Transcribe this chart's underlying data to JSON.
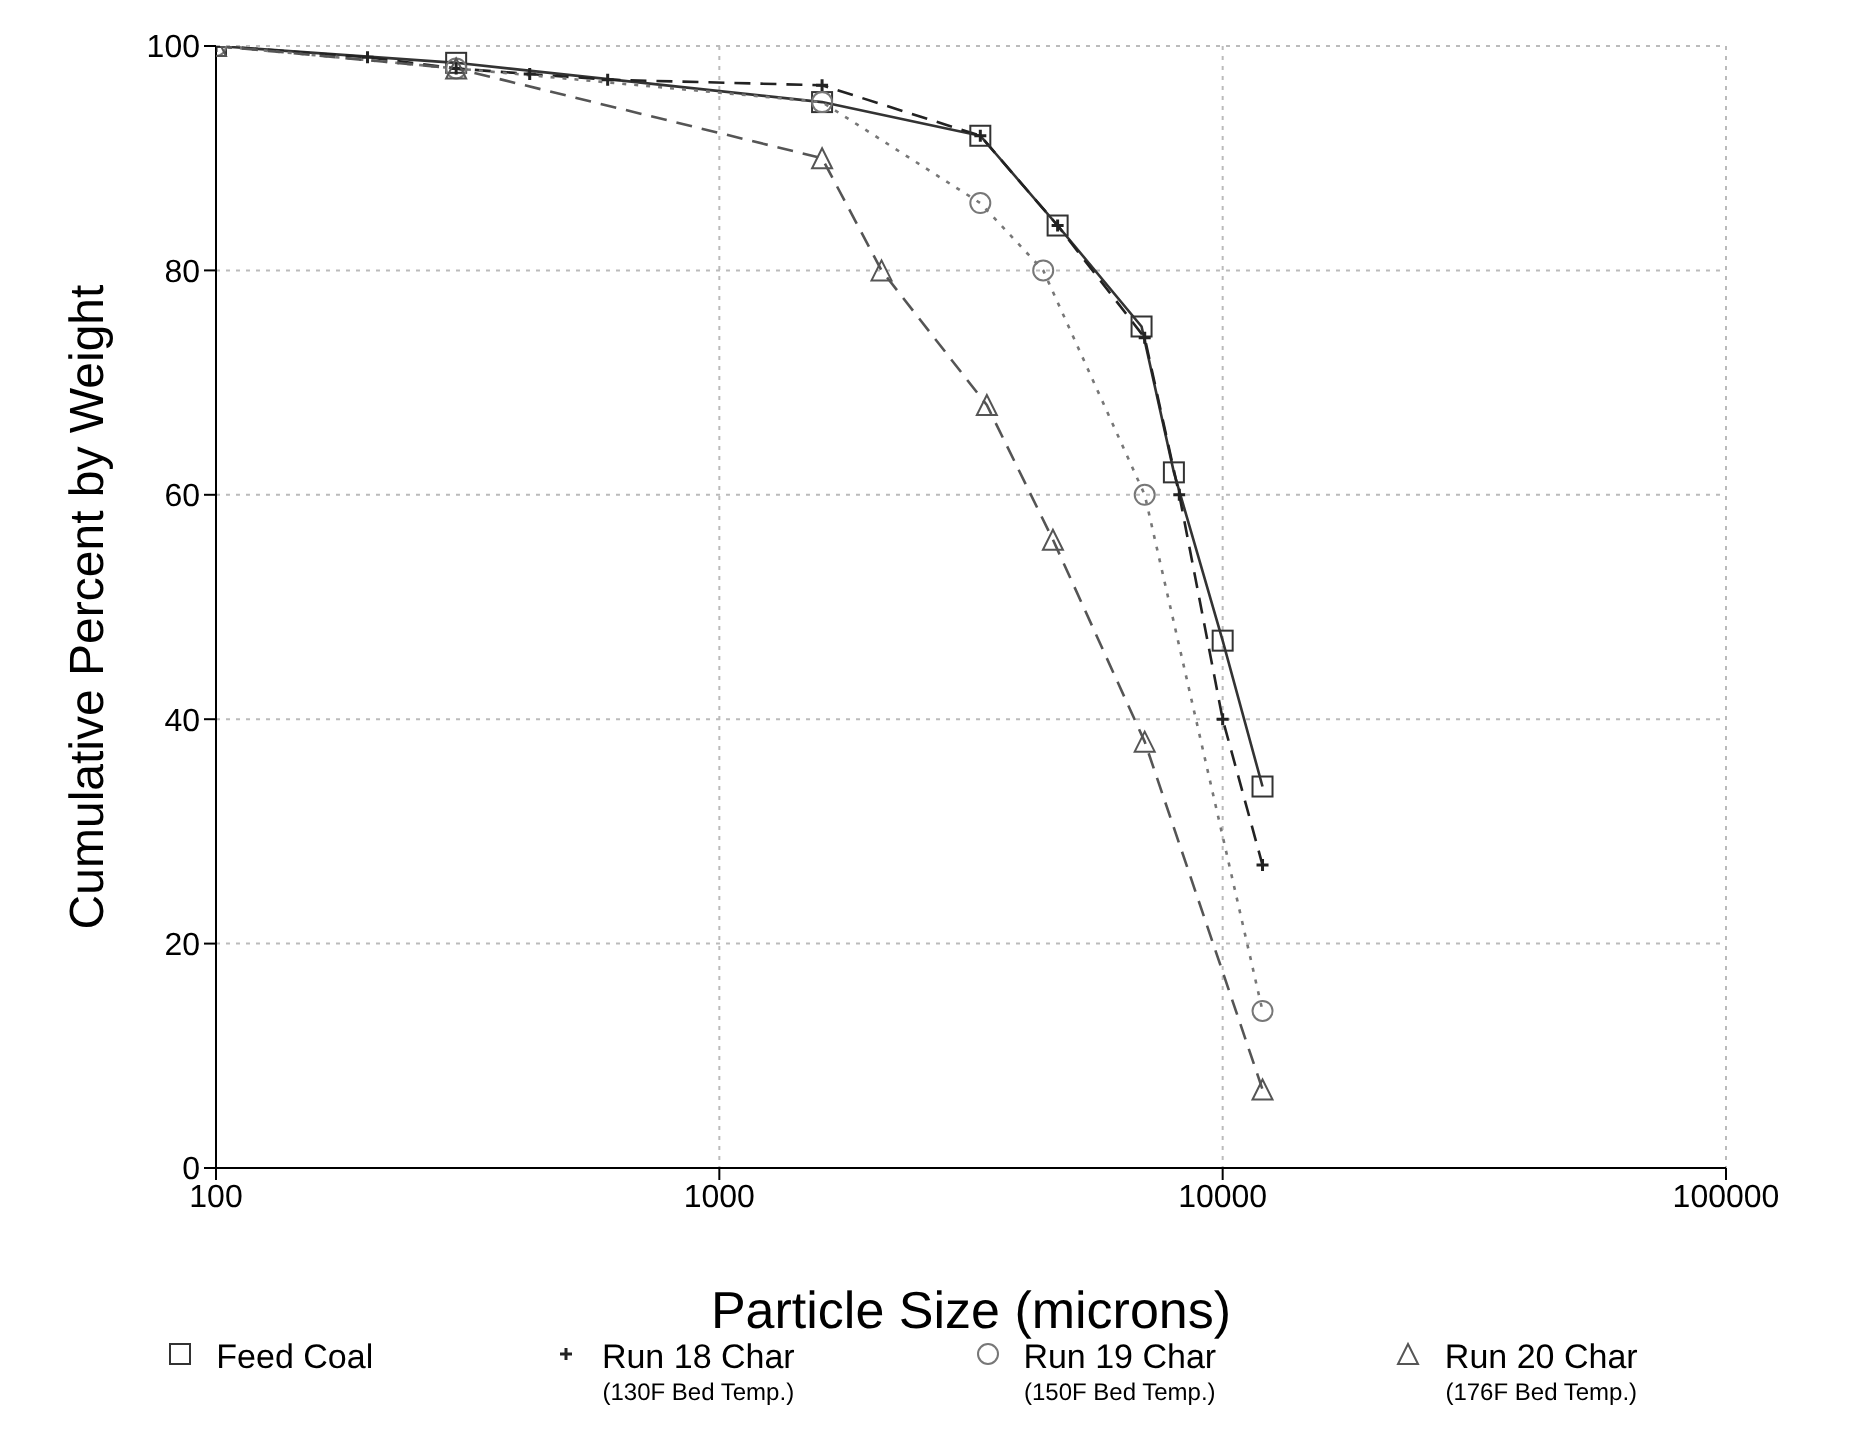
{
  "chart_data": {
    "type": "line",
    "xlabel": "Particle Size (microns)",
    "ylabel": "Cumulative Percent by Weight",
    "log": "x",
    "xlim": [
      100,
      100000
    ],
    "xticks": [
      100,
      1000,
      10000,
      100000
    ],
    "ylim": [
      0,
      100
    ],
    "yticks": [
      0,
      20,
      40,
      60,
      80,
      100
    ],
    "grid": true,
    "legend": "bottom",
    "series": [
      {
        "name": "Feed Coal",
        "color": "#333333",
        "marker": "square",
        "line_style": "solid",
        "x": [
          100,
          300,
          1600,
          3300,
          4700,
          6900,
          8000,
          10000,
          12000
        ],
        "values": [
          100,
          98.5,
          95,
          92,
          84,
          75,
          62,
          47,
          34
        ]
      },
      {
        "name": "Run 18 Char (130F Bed Temp.)",
        "color": "#222222",
        "marker": "cross",
        "line_style": "dashed",
        "x": [
          100,
          200,
          300,
          420,
          600,
          1600,
          3300,
          4700,
          7000,
          8200,
          10000,
          12000
        ],
        "values": [
          100,
          99,
          98,
          97.5,
          97,
          96.5,
          92,
          84,
          74,
          60,
          40,
          27
        ]
      },
      {
        "name": "Run 19 Char (150F Bed Temp.)",
        "color": "#777777",
        "marker": "circle",
        "line_style": "dotted",
        "x": [
          100,
          300,
          1600,
          3300,
          4400,
          7000,
          12000
        ],
        "values": [
          100,
          98,
          95,
          86,
          80,
          60,
          14
        ]
      },
      {
        "name": "Run 20 Char (176F Bed Temp.)",
        "color": "#555555",
        "marker": "triangle",
        "line_style": "dashed",
        "x": [
          100,
          300,
          1600,
          2100,
          3400,
          4600,
          7000,
          12000
        ],
        "values": [
          100,
          98,
          90,
          80,
          68,
          56,
          38,
          7
        ]
      }
    ]
  }
}
